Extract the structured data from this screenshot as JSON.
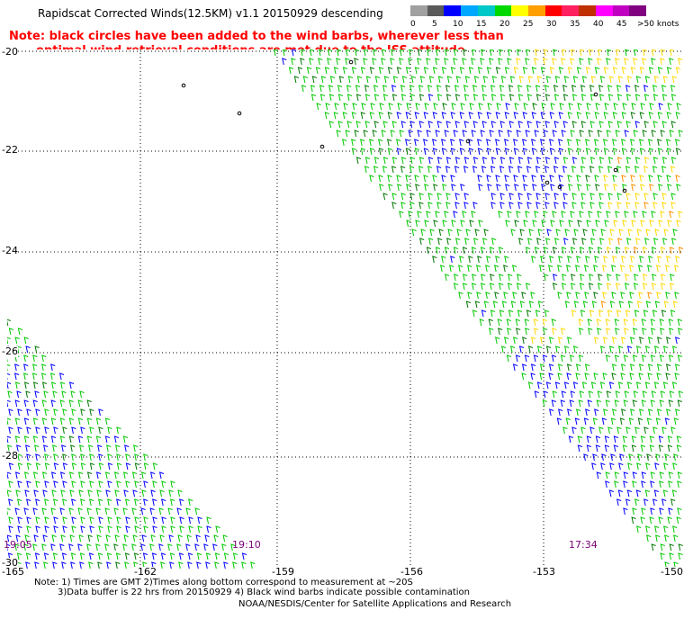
{
  "title": "Rapidscat Corrected Winds(12.5KM) v1.1 20150929 descending",
  "note": {
    "line1": "Note: black circles have been added to the wind barbs, wherever less than",
    "line2": "optimal wind retrieval conditions are met due to the ISS attitude changes."
  },
  "colorbar": {
    "colors": [
      "#a0a0a0",
      "#5a5a5a",
      "#0000ff",
      "#00a8ff",
      "#00c8c8",
      "#00d800",
      "#ffff00",
      "#ffa000",
      "#ff0000",
      "#ff2060",
      "#c03000",
      "#ff00ff",
      "#c000c0",
      "#800080"
    ],
    "labels": [
      "0",
      "5",
      "10",
      "15",
      "20",
      "25",
      "30",
      "35",
      "40",
      "45",
      ">50 knots"
    ]
  },
  "map": {
    "lat_labels": [
      "-20",
      "-22",
      "-24",
      "-26",
      "-28",
      "-30"
    ],
    "lon_labels": [
      "-165",
      "-162",
      "-159",
      "-156",
      "-153",
      "-150"
    ],
    "pass_times": [
      "19:05",
      "19:10",
      "17:34"
    ],
    "barb_colors": {
      "blue": "#0000ff",
      "green": "#00c800",
      "dark_green": "#007800",
      "yellow": "#ffd800",
      "orange": "#ff9000",
      "black": "#000000"
    }
  },
  "footnote": {
    "line1": "Note: 1) Times are GMT 2)Times along bottom correspond to measurement at ~20S",
    "line2": "3)Data buffer is 22 hrs from 20150929 4) Black wind barbs indicate possible contamination"
  },
  "credit": "NOAA/NESDIS/Center for Satellite Applications and Research"
}
